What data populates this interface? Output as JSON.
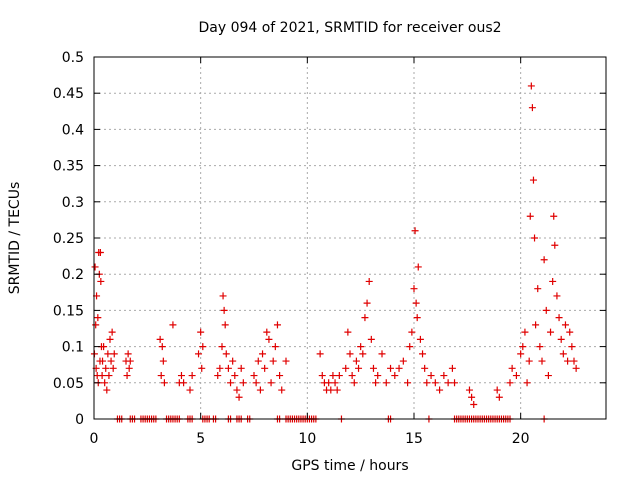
{
  "chart_data": {
    "type": "scatter",
    "title": "Day 094 of 2021, SRMTID for receiver ous2",
    "xlabel": "GPS time / hours",
    "ylabel": "SRMTID / TECUs",
    "xlim": [
      0,
      24
    ],
    "ylim": [
      0,
      0.5
    ],
    "xticks": [
      0,
      5,
      10,
      15,
      20
    ],
    "yticks": [
      0,
      0.05,
      0.1,
      0.15,
      0.2,
      0.25,
      0.3,
      0.35,
      0.4,
      0.45,
      0.5
    ],
    "xtick_labels": [
      "0",
      "5",
      "10",
      "15",
      "20"
    ],
    "ytick_labels": [
      "0",
      "0.05",
      "0.1",
      "0.15",
      "0.2",
      "0.25",
      "0.3",
      "0.35",
      "0.4",
      "0.45",
      "0.5"
    ],
    "grid": true,
    "marker": "+",
    "color": "#e00000",
    "series": [
      {
        "name": "SRMTID",
        "x": [
          0.02,
          0.05,
          0.08,
          0.1,
          0.12,
          0.15,
          0.18,
          0.2,
          0.22,
          0.25,
          0.28,
          0.3,
          0.32,
          0.35,
          0.38,
          0.4,
          0.45,
          0.5,
          0.55,
          0.6,
          0.65,
          0.7,
          0.75,
          0.8,
          0.85,
          0.9,
          0.95,
          1.5,
          1.55,
          1.6,
          1.65,
          1.7,
          3.1,
          3.15,
          3.2,
          3.25,
          3.3,
          3.7,
          4.0,
          4.1,
          4.2,
          4.5,
          4.6,
          4.9,
          5.0,
          5.05,
          5.1,
          5.8,
          5.9,
          6.0,
          6.05,
          6.1,
          6.15,
          6.2,
          6.3,
          6.4,
          6.5,
          6.6,
          6.7,
          6.8,
          6.9,
          7.0,
          7.5,
          7.6,
          7.7,
          7.8,
          7.9,
          8.0,
          8.1,
          8.2,
          8.3,
          8.4,
          8.5,
          8.6,
          8.7,
          8.8,
          9.0,
          10.6,
          10.7,
          10.8,
          10.9,
          11.0,
          11.1,
          11.2,
          11.3,
          11.4,
          11.5,
          11.8,
          11.9,
          12.0,
          12.1,
          12.2,
          12.3,
          12.4,
          12.5,
          12.6,
          12.7,
          12.8,
          12.9,
          13.0,
          13.1,
          13.2,
          13.3,
          13.5,
          13.7,
          13.9,
          14.1,
          14.3,
          14.5,
          14.7,
          14.8,
          14.9,
          15.0,
          15.05,
          15.1,
          15.15,
          15.2,
          15.3,
          15.4,
          15.5,
          15.6,
          15.8,
          16.0,
          16.2,
          16.4,
          16.6,
          16.8,
          16.9,
          17.6,
          17.7,
          17.8,
          18.9,
          19.0,
          19.5,
          19.6,
          19.8,
          20.0,
          20.1,
          20.2,
          20.3,
          20.4,
          20.45,
          20.5,
          20.55,
          20.6,
          20.65,
          20.7,
          20.8,
          20.9,
          21.0,
          21.1,
          21.2,
          21.3,
          21.4,
          21.5,
          21.55,
          21.6,
          21.7,
          21.8,
          21.9,
          22.0,
          22.1,
          22.2,
          22.3,
          22.4,
          22.5,
          22.6
        ],
        "y": [
          0.09,
          0.21,
          0.13,
          0.07,
          0.17,
          0.06,
          0.14,
          0.05,
          0.23,
          0.2,
          0.08,
          0.23,
          0.19,
          0.1,
          0.06,
          0.08,
          0.1,
          0.05,
          0.07,
          0.04,
          0.09,
          0.06,
          0.11,
          0.08,
          0.12,
          0.07,
          0.09,
          0.08,
          0.06,
          0.09,
          0.07,
          0.08,
          0.11,
          0.06,
          0.1,
          0.08,
          0.05,
          0.13,
          0.05,
          0.06,
          0.05,
          0.04,
          0.06,
          0.09,
          0.12,
          0.07,
          0.1,
          0.06,
          0.07,
          0.1,
          0.17,
          0.15,
          0.13,
          0.09,
          0.07,
          0.05,
          0.08,
          0.06,
          0.04,
          0.03,
          0.07,
          0.05,
          0.06,
          0.05,
          0.08,
          0.04,
          0.09,
          0.07,
          0.12,
          0.11,
          0.05,
          0.08,
          0.1,
          0.13,
          0.06,
          0.04,
          0.08,
          0.09,
          0.06,
          0.05,
          0.04,
          0.05,
          0.04,
          0.06,
          0.05,
          0.04,
          0.06,
          0.07,
          0.12,
          0.09,
          0.06,
          0.05,
          0.08,
          0.07,
          0.1,
          0.09,
          0.14,
          0.16,
          0.19,
          0.11,
          0.07,
          0.05,
          0.06,
          0.09,
          0.05,
          0.07,
          0.06,
          0.07,
          0.08,
          0.05,
          0.1,
          0.12,
          0.18,
          0.26,
          0.16,
          0.14,
          0.21,
          0.11,
          0.09,
          0.07,
          0.05,
          0.06,
          0.05,
          0.04,
          0.06,
          0.05,
          0.07,
          0.05,
          0.04,
          0.03,
          0.02,
          0.04,
          0.03,
          0.05,
          0.07,
          0.06,
          0.09,
          0.1,
          0.12,
          0.05,
          0.08,
          0.28,
          0.46,
          0.43,
          0.33,
          0.25,
          0.13,
          0.18,
          0.1,
          0.08,
          0.22,
          0.15,
          0.06,
          0.12,
          0.19,
          0.28,
          0.24,
          0.17,
          0.14,
          0.11,
          0.09,
          0.13,
          0.08,
          0.12,
          0.1,
          0.08,
          0.07
        ]
      },
      {
        "name": "zero",
        "x": [
          1.1,
          1.2,
          1.3,
          1.7,
          1.8,
          1.9,
          2.2,
          2.3,
          2.4,
          2.5,
          2.6,
          2.7,
          2.8,
          2.9,
          3.4,
          3.5,
          3.6,
          3.7,
          3.8,
          3.9,
          4.0,
          4.4,
          4.5,
          4.6,
          5.1,
          5.2,
          5.3,
          5.4,
          5.6,
          5.7,
          6.3,
          6.4,
          6.7,
          6.8,
          6.9,
          7.2,
          7.3,
          8.6,
          8.7,
          9.0,
          9.1,
          9.2,
          9.3,
          9.4,
          9.5,
          9.6,
          9.7,
          9.8,
          9.9,
          10.0,
          10.1,
          10.2,
          10.3,
          10.4,
          11.6,
          13.8,
          13.9,
          15.7,
          16.9,
          17.0,
          17.1,
          17.2,
          17.3,
          17.4,
          17.5,
          17.6,
          17.7,
          17.8,
          17.9,
          18.0,
          18.1,
          18.2,
          18.3,
          18.4,
          18.5,
          18.6,
          18.7,
          18.8,
          18.9,
          19.0,
          19.1,
          19.2,
          19.3,
          19.4,
          19.5,
          21.1
        ],
        "y": 0
      }
    ]
  }
}
